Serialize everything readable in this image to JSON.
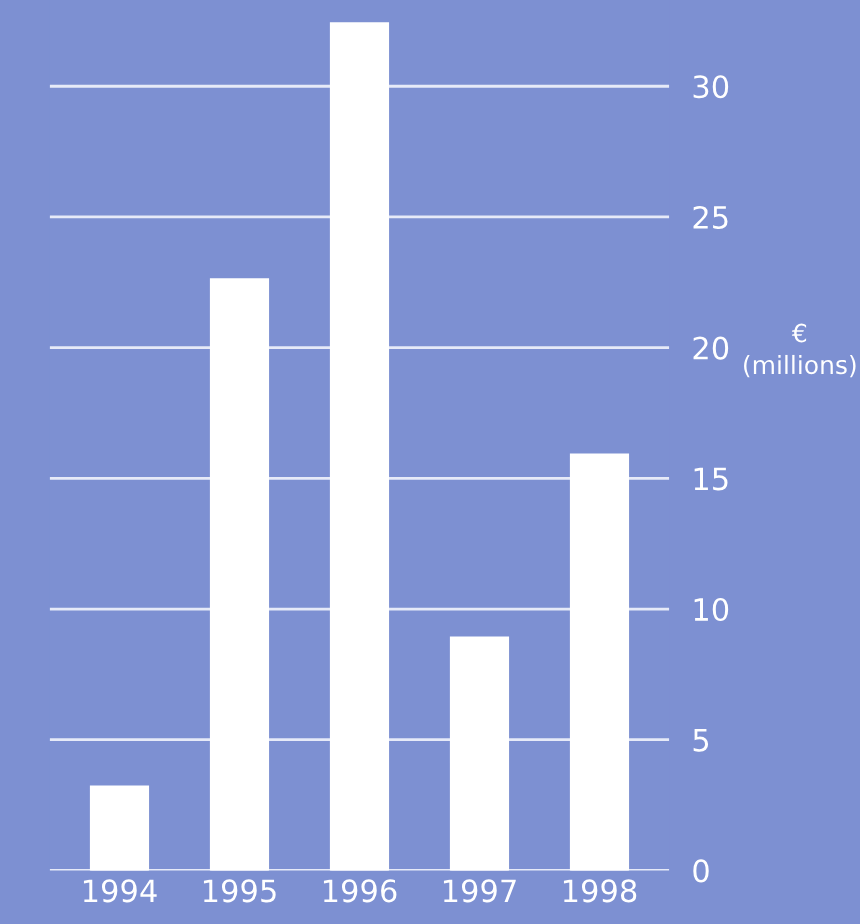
{
  "chart_data": {
    "type": "bar",
    "categories": [
      "1994",
      "1995",
      "1996",
      "1997",
      "1998"
    ],
    "values": [
      3.2,
      22.6,
      32.4,
      8.9,
      15.9
    ],
    "color": "#ffffff",
    "ylabel": "€\n(millions)",
    "ylim": [
      0,
      33.3
    ],
    "yticks": [
      0,
      5,
      10,
      15,
      20,
      25,
      30
    ],
    "grid": "y"
  }
}
